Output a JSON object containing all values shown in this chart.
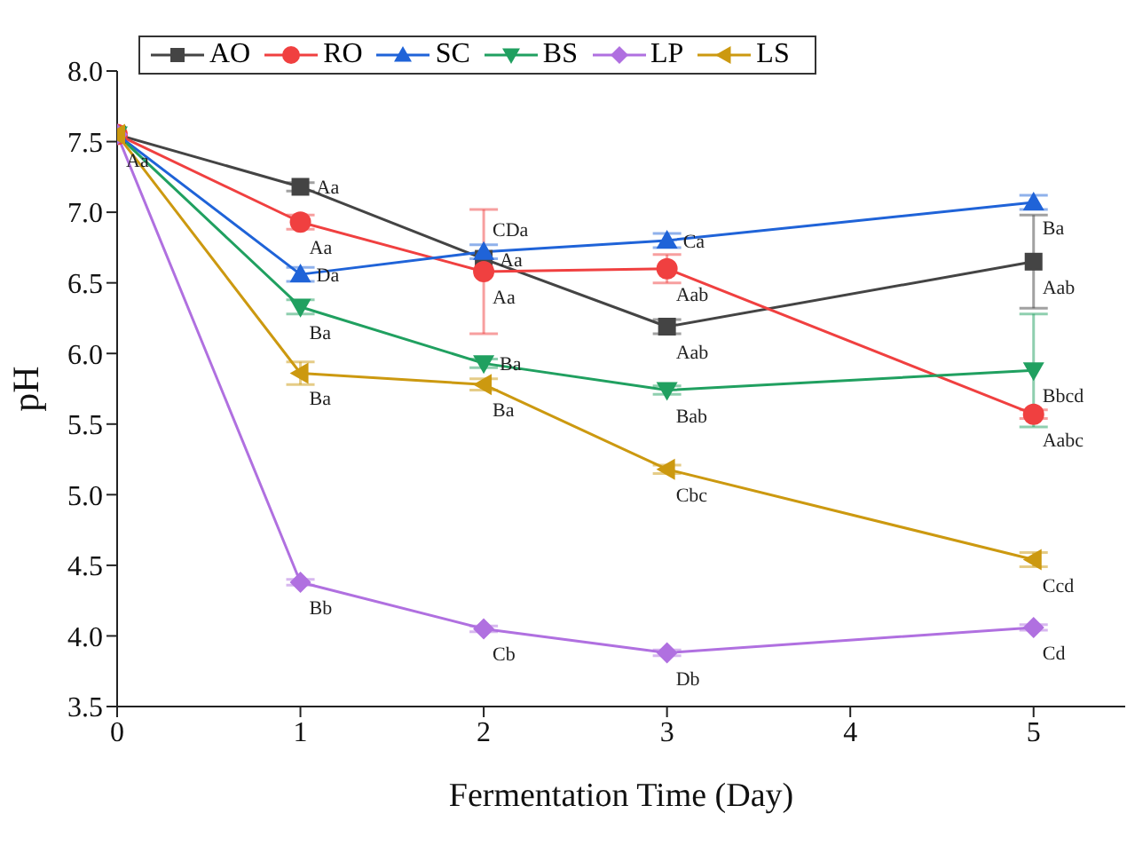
{
  "chart_data": {
    "type": "line",
    "xlabel": "Fermentation Time (Day)",
    "ylabel": "pH",
    "x": [
      0,
      1,
      2,
      3,
      5
    ],
    "series": [
      {
        "name": "AO",
        "color": "#444444",
        "marker": "square",
        "values": [
          7.55,
          7.18,
          6.67,
          6.19,
          6.65
        ],
        "errors": [
          null,
          0.03,
          null,
          0.05,
          0.33
        ],
        "value_labels": [
          "Aa",
          "Aa",
          "Aa",
          "Aab",
          "Aab"
        ]
      },
      {
        "name": "RO",
        "color": "#f04040",
        "marker": "circle",
        "values": [
          7.55,
          6.93,
          6.58,
          6.6,
          5.57
        ],
        "errors": [
          null,
          0.05,
          0.44,
          0.1,
          0.03
        ],
        "value_labels": [
          null,
          "Aa",
          "Aa",
          "Aab",
          "Aabc"
        ]
      },
      {
        "name": "SC",
        "color": "#1f63d8",
        "marker": "triangle",
        "values": [
          7.55,
          6.56,
          6.72,
          6.8,
          7.07
        ],
        "errors": [
          null,
          0.05,
          0.05,
          0.05,
          0.05
        ],
        "value_labels": [
          null,
          "Da",
          "CDa",
          "Ca",
          "Ba"
        ]
      },
      {
        "name": "BS",
        "color": "#20a060",
        "marker": "triangle-down",
        "values": [
          7.55,
          6.33,
          5.93,
          5.74,
          5.88
        ],
        "errors": [
          null,
          0.05,
          0.03,
          0.03,
          0.4
        ],
        "value_labels": [
          null,
          "Ba",
          "Ba",
          "Bab",
          "Bbcd"
        ]
      },
      {
        "name": "LP",
        "color": "#b070e0",
        "marker": "diamond",
        "values": [
          7.55,
          4.38,
          4.05,
          3.88,
          4.06
        ],
        "errors": [
          null,
          0.02,
          0.02,
          0.02,
          0.02
        ],
        "value_labels": [
          null,
          "Bb",
          "Cb",
          "Db",
          "Cd"
        ]
      },
      {
        "name": "LS",
        "color": "#cc9910",
        "marker": "triangle-left",
        "values": [
          7.55,
          5.86,
          5.78,
          5.18,
          4.54
        ],
        "errors": [
          null,
          0.08,
          0.04,
          0.03,
          0.05
        ],
        "value_labels": [
          null,
          "Ba",
          "Ba",
          "Cbc",
          "Ccd"
        ]
      }
    ],
    "xlim": [
      0,
      5.5
    ],
    "xticks": [
      0,
      1,
      2,
      3,
      4,
      5
    ],
    "ylim": [
      3.5,
      8
    ],
    "yticks": [
      {
        "value": 3.5,
        "label": "3.5"
      },
      {
        "value": 4,
        "label": "4.0"
      },
      {
        "value": 4.5,
        "label": "4.5"
      },
      {
        "value": 5,
        "label": "5.0"
      },
      {
        "value": 5.5,
        "label": "5.5"
      },
      {
        "value": 6,
        "label": "6.0"
      },
      {
        "value": 6.5,
        "label": "6.5"
      },
      {
        "value": 7,
        "label": "7.0"
      },
      {
        "value": 7.5,
        "label": "7.5"
      },
      {
        "value": 8,
        "label": "8.0"
      }
    ],
    "grid": false,
    "legend": "top left",
    "line_style": "solid"
  }
}
